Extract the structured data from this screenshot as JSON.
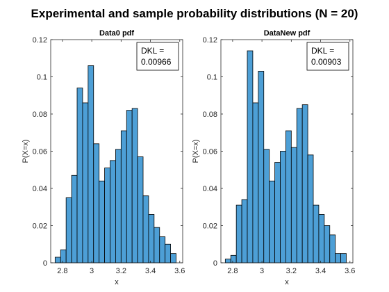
{
  "figure": {
    "title": "Experimental and sample probability distributions (N = 20)"
  },
  "chart_data": [
    {
      "type": "bar",
      "title": "Data0 pdf",
      "xlabel": "x",
      "ylabel": "P(X=x)",
      "xlim": [
        2.72,
        3.62
      ],
      "ylim": [
        0,
        0.12
      ],
      "xticks": [
        "2.8",
        "3",
        "3.2",
        "3.4",
        "3.6"
      ],
      "xtick_values": [
        2.8,
        3.0,
        3.2,
        3.4,
        3.6
      ],
      "yticks": [
        "0",
        "0.02",
        "0.04",
        "0.06",
        "0.08",
        "0.1",
        "0.12"
      ],
      "ytick_values": [
        0,
        0.02,
        0.04,
        0.06,
        0.08,
        0.1,
        0.12
      ],
      "bin_edges": [
        2.75,
        2.7875,
        2.825,
        2.8625,
        2.9,
        2.9375,
        2.975,
        3.0125,
        3.05,
        3.0875,
        3.125,
        3.1625,
        3.2,
        3.2375,
        3.275,
        3.3125,
        3.35,
        3.3875,
        3.425,
        3.4625,
        3.5,
        3.5375,
        3.575
      ],
      "values": [
        0.003,
        0.007,
        0.035,
        0.047,
        0.094,
        0.086,
        0.106,
        0.064,
        0.044,
        0.051,
        0.055,
        0.061,
        0.071,
        0.082,
        0.083,
        0.057,
        0.036,
        0.026,
        0.019,
        0.014,
        0.01,
        0.005
      ],
      "legend_lines": [
        "DKL =",
        "0.00966"
      ],
      "legend_location": "top-right",
      "bar_color": "#4d9fd6",
      "edge_color": "#000000"
    },
    {
      "type": "bar",
      "title": "DataNew pdf",
      "xlabel": "x",
      "ylabel": "P(X=x)",
      "xlim": [
        2.72,
        3.62
      ],
      "ylim": [
        0,
        0.12
      ],
      "xticks": [
        "2.8",
        "3",
        "3.2",
        "3.4",
        "3.6"
      ],
      "xtick_values": [
        2.8,
        3.0,
        3.2,
        3.4,
        3.6
      ],
      "yticks": [
        "0",
        "0.02",
        "0.04",
        "0.06",
        "0.08",
        "0.1",
        "0.12"
      ],
      "ytick_values": [
        0,
        0.02,
        0.04,
        0.06,
        0.08,
        0.1,
        0.12
      ],
      "bin_edges": [
        2.75,
        2.7875,
        2.825,
        2.8625,
        2.9,
        2.9375,
        2.975,
        3.0125,
        3.05,
        3.0875,
        3.125,
        3.1625,
        3.2,
        3.2375,
        3.275,
        3.3125,
        3.35,
        3.3875,
        3.425,
        3.4625,
        3.5,
        3.5375,
        3.575
      ],
      "values": [
        0.002,
        0.004,
        0.031,
        0.034,
        0.114,
        0.086,
        0.103,
        0.061,
        0.044,
        0.054,
        0.06,
        0.071,
        0.062,
        0.083,
        0.085,
        0.058,
        0.031,
        0.026,
        0.02,
        0.015,
        0.005,
        0.005
      ],
      "legend_lines": [
        "DKL =",
        "0.00903"
      ],
      "legend_location": "top-right",
      "bar_color": "#4d9fd6",
      "edge_color": "#000000"
    }
  ]
}
